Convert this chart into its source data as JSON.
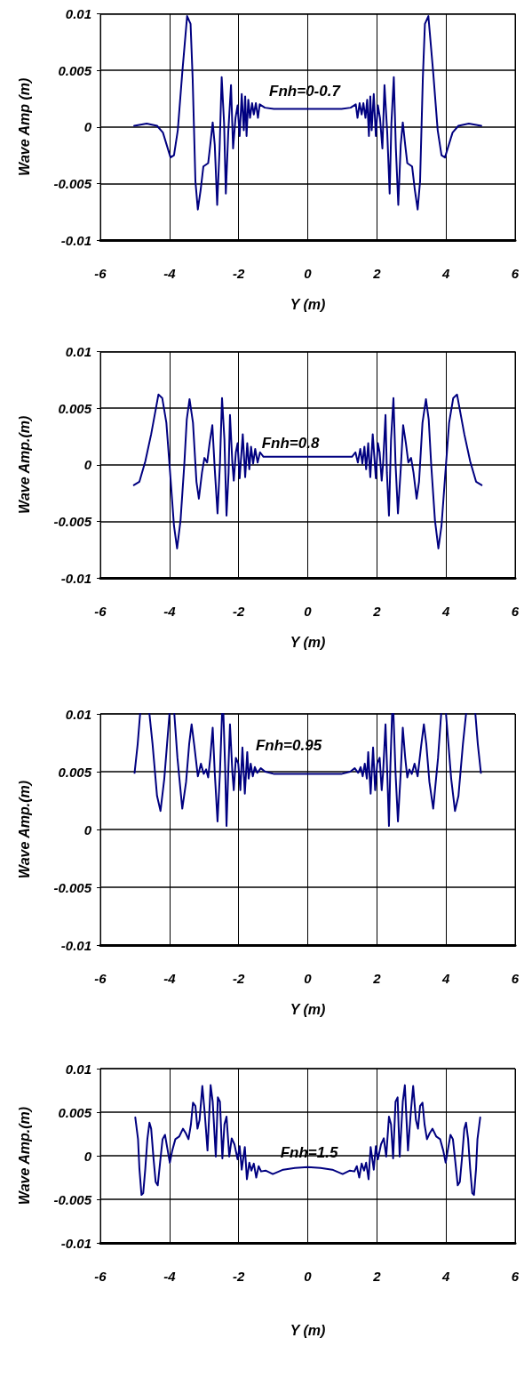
{
  "chart_data": [
    {
      "type": "line",
      "xlabel": "Y (m)",
      "ylabel": "Wave Amp (m)",
      "xlim": [
        -6,
        6
      ],
      "xticks": [
        -6,
        -4,
        -2,
        0,
        2,
        4,
        6
      ],
      "ylim": [
        -0.01,
        0.01
      ],
      "yticks": [
        -0.01,
        -0.005,
        0,
        0.005,
        0.01
      ],
      "grid": true,
      "marker": "none",
      "line_style": "solid",
      "annotations": [
        "Fnh=0-0.7"
      ],
      "series": [
        {
          "color": "#000080",
          "x": [
            -5.02,
            -4.66,
            -4.36,
            -4.19,
            -3.97,
            -3.87,
            -3.76,
            -3.63,
            -3.49,
            -3.39,
            -3.33,
            -3.25,
            -3.18,
            -3.1,
            -3.02,
            -2.88,
            -2.82,
            -2.75,
            -2.69,
            -2.62,
            -2.55,
            -2.49,
            -2.42,
            -2.37,
            -2.3,
            -2.22,
            -2.16,
            -2.09,
            -2.03,
            -1.97,
            -1.91,
            -1.85,
            -1.81,
            -1.77,
            -1.72,
            -1.67,
            -1.61,
            -1.56,
            -1.5,
            -1.44,
            -1.39,
            -1.24,
            -0.98,
            -0.56,
            0,
            0.56,
            0.98,
            1.24,
            1.39,
            1.44,
            1.5,
            1.56,
            1.61,
            1.67,
            1.72,
            1.77,
            1.81,
            1.85,
            1.91,
            1.97,
            2.03,
            2.09,
            2.16,
            2.22,
            2.3,
            2.37,
            2.42,
            2.49,
            2.55,
            2.62,
            2.69,
            2.75,
            2.82,
            2.88,
            3.02,
            3.1,
            3.18,
            3.25,
            3.33,
            3.39,
            3.49,
            3.63,
            3.76,
            3.87,
            3.97,
            4.19,
            4.36,
            4.66,
            5.02
          ],
          "values": [
            0.0001,
            0.0003,
            0.0001,
            -0.0005,
            -0.0027,
            -0.0025,
            -0.0003,
            0.0048,
            0.0098,
            0.0091,
            0.0043,
            -0.0048,
            -0.0073,
            -0.0056,
            -0.0035,
            -0.0032,
            -0.0016,
            0.0004,
            -0.0016,
            -0.0069,
            -0.0019,
            0.0044,
            0.0003,
            -0.0059,
            -0.0005,
            0.0037,
            -0.0019,
            0.0008,
            0.0019,
            -0.0008,
            0.0029,
            -0.0003,
            0.0027,
            -0.0008,
            0.0024,
            0.0008,
            0.0021,
            0.0011,
            0.0021,
            0.0008,
            0.002,
            0.0017,
            0.0016,
            0.0016,
            0.0016,
            0.0016,
            0.0016,
            0.0017,
            0.002,
            0.0008,
            0.0021,
            0.0011,
            0.0021,
            0.0008,
            0.0024,
            -0.0008,
            0.0027,
            -0.0003,
            0.0029,
            -0.0008,
            0.0019,
            0.0008,
            -0.0019,
            0.0037,
            -0.0005,
            -0.0059,
            0.0003,
            0.0044,
            -0.0019,
            -0.0069,
            -0.0016,
            0.0004,
            -0.0016,
            -0.0032,
            -0.0035,
            -0.0056,
            -0.0073,
            -0.0048,
            0.0043,
            0.0091,
            0.0098,
            0.0048,
            -0.0003,
            -0.0025,
            -0.0027,
            -0.0005,
            0.0001,
            0.0003,
            0.0001
          ]
        }
      ]
    },
    {
      "type": "line",
      "xlabel": "Y (m)",
      "ylabel": "Wave Amp.(m)",
      "xlim": [
        -6,
        6
      ],
      "xticks": [
        -6,
        -4,
        -2,
        0,
        2,
        4,
        6
      ],
      "ylim": [
        -0.01,
        0.01
      ],
      "yticks": [
        -0.01,
        -0.005,
        0,
        0.005,
        0.01
      ],
      "grid": true,
      "marker": "none",
      "line_style": "solid",
      "annotations": [
        "Fnh=0.8"
      ],
      "series": [
        {
          "color": "#000080",
          "x": [
            -5.03,
            -4.87,
            -4.7,
            -4.53,
            -4.32,
            -4.21,
            -4.09,
            -3.97,
            -3.87,
            -3.78,
            -3.68,
            -3.57,
            -3.5,
            -3.42,
            -3.32,
            -3.22,
            -3.15,
            -3.06,
            -2.99,
            -2.91,
            -2.84,
            -2.76,
            -2.69,
            -2.61,
            -2.54,
            -2.48,
            -2.41,
            -2.35,
            -2.29,
            -2.25,
            -2.18,
            -2.14,
            -2.08,
            -2.03,
            -1.97,
            -1.88,
            -1.81,
            -1.75,
            -1.69,
            -1.64,
            -1.58,
            -1.52,
            -1.45,
            -1.38,
            -1.28,
            -0.94,
            0,
            0.94,
            1.28,
            1.38,
            1.45,
            1.52,
            1.58,
            1.64,
            1.69,
            1.75,
            1.81,
            1.88,
            1.97,
            2.03,
            2.08,
            2.14,
            2.18,
            2.25,
            2.29,
            2.35,
            2.41,
            2.48,
            2.54,
            2.61,
            2.69,
            2.76,
            2.84,
            2.91,
            2.99,
            3.06,
            3.15,
            3.22,
            3.32,
            3.42,
            3.5,
            3.57,
            3.68,
            3.78,
            3.87,
            3.97,
            4.09,
            4.21,
            4.32,
            4.53,
            4.7,
            4.87,
            5.03
          ],
          "values": [
            -0.0018,
            -0.0015,
            0.0003,
            0.0027,
            0.0062,
            0.0059,
            0.0037,
            -0.0012,
            -0.0054,
            -0.0074,
            -0.0049,
            0.0001,
            0.004,
            0.0058,
            0.0037,
            -0.0015,
            -0.003,
            -0.0007,
            0.0006,
            0.0002,
            0.0019,
            0.0035,
            -0.0004,
            -0.0043,
            0.0001,
            0.0059,
            0.0022,
            -0.0045,
            -0.0007,
            0.0044,
            0.0001,
            -0.0014,
            0.0011,
            0.0019,
            -0.0012,
            0.0027,
            -0.0011,
            0.0019,
            -0.0004,
            0.0016,
            0.0001,
            0.0014,
            0.0002,
            0.0011,
            0.0007,
            0.0007,
            0.0007,
            0.0007,
            0.0007,
            0.0011,
            0.0002,
            0.0014,
            0.0001,
            0.0016,
            -0.0004,
            0.0019,
            -0.0011,
            0.0027,
            -0.0012,
            0.0019,
            0.0011,
            -0.0014,
            0.0001,
            0.0044,
            -0.0007,
            -0.0045,
            0.0022,
            0.0059,
            0.0001,
            -0.0043,
            -0.0004,
            0.0035,
            0.0019,
            0.0002,
            0.0006,
            -0.0007,
            -0.003,
            -0.0015,
            0.0037,
            0.0058,
            0.004,
            0.0001,
            -0.0049,
            -0.0074,
            -0.0054,
            -0.0012,
            0.0037,
            0.0059,
            0.0062,
            0.0027,
            0.0003,
            -0.0015,
            -0.0018
          ]
        }
      ]
    },
    {
      "type": "line",
      "xlabel": "Y (m)",
      "ylabel": "Wave Amp.(m)",
      "xlim": [
        -6,
        6
      ],
      "xticks": [
        -6,
        -4,
        -2,
        0,
        2,
        4,
        6
      ],
      "ylim": [
        -0.01,
        0.01
      ],
      "yticks": [
        -0.01,
        -0.005,
        0,
        0.005,
        0.01
      ],
      "grid": true,
      "marker": "none",
      "line_style": "solid",
      "annotations": [
        "Fnh=0.95"
      ],
      "series": [
        {
          "color": "#000080",
          "x": [
            -5.01,
            -4.92,
            -4.85,
            -4.72,
            -4.58,
            -4.49,
            -4.36,
            -4.26,
            -4.15,
            -4.07,
            -4.0,
            -3.93,
            -3.86,
            -3.77,
            -3.63,
            -3.52,
            -3.43,
            -3.36,
            -3.28,
            -3.18,
            -3.09,
            -3.01,
            -2.94,
            -2.88,
            -2.82,
            -2.75,
            -2.69,
            -2.61,
            -2.54,
            -2.48,
            -2.46,
            -2.44,
            -2.39,
            -2.35,
            -2.3,
            -2.25,
            -2.18,
            -2.14,
            -2.08,
            -2.01,
            -1.95,
            -1.89,
            -1.82,
            -1.75,
            -1.71,
            -1.65,
            -1.59,
            -1.53,
            -1.46,
            -1.36,
            -1.23,
            -0.97,
            0,
            0.97,
            1.23,
            1.36,
            1.46,
            1.53,
            1.59,
            1.65,
            1.71,
            1.75,
            1.82,
            1.89,
            1.95,
            2.01,
            2.08,
            2.14,
            2.18,
            2.25,
            2.3,
            2.35,
            2.39,
            2.44,
            2.46,
            2.48,
            2.54,
            2.61,
            2.69,
            2.75,
            2.82,
            2.88,
            2.94,
            3.01,
            3.09,
            3.18,
            3.28,
            3.36,
            3.43,
            3.52,
            3.63,
            3.77,
            3.86,
            3.93,
            4.0,
            4.07,
            4.15,
            4.26,
            4.36,
            4.49,
            4.58,
            4.72,
            4.85,
            4.92,
            5.01
          ],
          "values": [
            0.0049,
            0.0074,
            0.01,
            null,
            0.01,
            0.0074,
            0.0029,
            0.0016,
            0.0044,
            0.0074,
            0.01,
            null,
            0.01,
            0.0062,
            0.0018,
            0.0041,
            0.0074,
            0.0091,
            0.0072,
            0.0046,
            0.0057,
            0.0048,
            0.0052,
            0.0045,
            0.0062,
            0.0088,
            0.0049,
            0.0007,
            0.0049,
            0.01,
            null,
            0.01,
            0.0054,
            0.0003,
            0.0049,
            0.0091,
            0.0049,
            0.0034,
            0.0062,
            0.0057,
            0.0034,
            0.0071,
            0.0031,
            0.0067,
            0.0044,
            0.0057,
            0.0046,
            0.0054,
            0.0049,
            0.0053,
            0.005,
            0.0048,
            0.0048,
            0.0048,
            0.005,
            0.0053,
            0.0049,
            0.0054,
            0.0046,
            0.0057,
            0.0044,
            0.0067,
            0.0031,
            0.0071,
            0.0034,
            0.0057,
            0.0062,
            0.0034,
            0.0049,
            0.0091,
            0.0049,
            0.0003,
            0.0054,
            0.01,
            null,
            0.01,
            0.0049,
            0.0007,
            0.0049,
            0.0088,
            0.0062,
            0.0045,
            0.0052,
            0.0048,
            0.0057,
            0.0046,
            0.0072,
            0.0091,
            0.0074,
            0.0041,
            0.0018,
            0.0062,
            0.01,
            null,
            0.01,
            0.0074,
            0.0044,
            0.0016,
            0.0029,
            0.0074,
            0.01,
            null,
            0.01,
            0.0074,
            0.0049
          ]
        }
      ]
    },
    {
      "type": "line",
      "xlabel": "Y (m)",
      "ylabel": "Wave Amp.(m)",
      "xlim": [
        -6,
        6
      ],
      "xticks": [
        -6,
        -4,
        -2,
        0,
        2,
        4,
        6
      ],
      "ylim": [
        -0.01,
        0.01
      ],
      "yticks": [
        -0.01,
        -0.005,
        0,
        0.005,
        0.01
      ],
      "grid": true,
      "marker": "none",
      "line_style": "solid",
      "annotations": [
        "Fnh=1.5"
      ],
      "series": [
        {
          "color": "#000080",
          "x": [
            -4.99,
            -4.91,
            -4.87,
            -4.81,
            -4.76,
            -4.7,
            -4.64,
            -4.58,
            -4.53,
            -4.46,
            -4.4,
            -4.34,
            -4.27,
            -4.2,
            -4.13,
            -4.06,
            -3.99,
            -3.92,
            -3.83,
            -3.72,
            -3.61,
            -3.53,
            -3.45,
            -3.38,
            -3.32,
            -3.25,
            -3.19,
            -3.13,
            -3.05,
            -2.98,
            -2.9,
            -2.81,
            -2.75,
            -2.66,
            -2.6,
            -2.54,
            -2.47,
            -2.41,
            -2.35,
            -2.27,
            -2.2,
            -2.12,
            -2.03,
            -1.97,
            -1.91,
            -1.82,
            -1.76,
            -1.69,
            -1.63,
            -1.56,
            -1.49,
            -1.42,
            -1.35,
            -1.22,
            -1.01,
            -0.71,
            -0.37,
            0,
            0.37,
            0.71,
            1.01,
            1.22,
            1.35,
            1.42,
            1.49,
            1.56,
            1.63,
            1.69,
            1.76,
            1.82,
            1.91,
            1.97,
            2.03,
            2.12,
            2.2,
            2.27,
            2.35,
            2.41,
            2.47,
            2.54,
            2.6,
            2.66,
            2.75,
            2.81,
            2.9,
            2.98,
            3.05,
            3.13,
            3.19,
            3.25,
            3.32,
            3.38,
            3.45,
            3.53,
            3.61,
            3.72,
            3.83,
            3.92,
            3.99,
            4.06,
            4.13,
            4.2,
            4.27,
            4.34,
            4.4,
            4.46,
            4.53,
            4.58,
            4.64,
            4.7,
            4.76,
            4.81,
            4.87,
            4.91,
            4.99
          ],
          "values": [
            0.0044,
            0.0019,
            -0.0015,
            -0.0045,
            -0.0043,
            -0.0015,
            0.0019,
            0.0038,
            0.0031,
            -0.0004,
            -0.003,
            -0.0034,
            -0.0007,
            0.0019,
            0.0024,
            0.0008,
            -0.0008,
            0.0006,
            0.0019,
            0.0022,
            0.0031,
            0.0026,
            0.0019,
            0.0036,
            0.0061,
            0.0057,
            0.0031,
            0.0041,
            0.008,
            0.0049,
            0.0006,
            0.0081,
            0.0062,
            -0.0001,
            0.0067,
            0.0062,
            -0.0003,
            0.0036,
            0.0045,
            -0.0001,
            0.002,
            0.0013,
            -0.0004,
            0.0011,
            -0.0016,
            0.001,
            -0.0027,
            -0.0008,
            -0.0017,
            -0.0009,
            -0.0025,
            -0.0012,
            -0.0018,
            -0.0017,
            -0.0021,
            -0.0016,
            -0.0014,
            -0.0013,
            -0.0014,
            -0.0016,
            -0.0021,
            -0.0017,
            -0.0018,
            -0.0012,
            -0.0025,
            -0.0009,
            -0.0017,
            -0.0008,
            -0.0027,
            0.001,
            -0.0016,
            0.0011,
            -0.0004,
            0.0013,
            0.002,
            -0.0001,
            0.0045,
            0.0036,
            -0.0003,
            0.0062,
            0.0067,
            -0.0001,
            0.0062,
            0.0081,
            0.0006,
            0.0049,
            0.008,
            0.0041,
            0.0031,
            0.0057,
            0.0061,
            0.0036,
            0.0019,
            0.0026,
            0.0031,
            0.0022,
            0.0019,
            0.0006,
            -0.0008,
            0.0008,
            0.0024,
            0.0019,
            -0.0007,
            -0.0034,
            -0.003,
            -0.0004,
            0.0031,
            0.0038,
            0.0019,
            -0.0015,
            -0.0043,
            -0.0045,
            -0.0015,
            0.0019,
            0.0044
          ]
        }
      ]
    }
  ]
}
